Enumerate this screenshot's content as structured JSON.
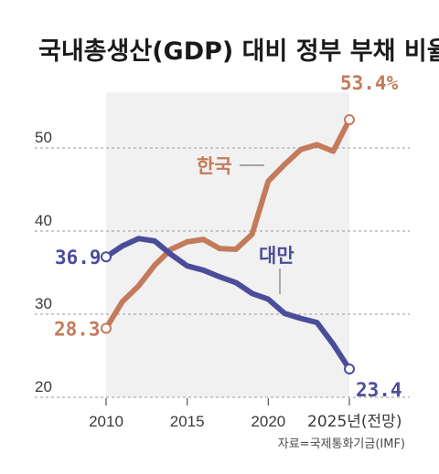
{
  "chart_data": {
    "type": "line",
    "title": "국내총생산(GDP) 대비 정부 부채 비율",
    "source": "자료=국제통화기금(IMF)",
    "x": [
      2010,
      2011,
      2012,
      2013,
      2014,
      2015,
      2016,
      2017,
      2018,
      2019,
      2020,
      2021,
      2022,
      2023,
      2024,
      2025
    ],
    "x_ticks": [
      {
        "value": 2010,
        "label": "2010"
      },
      {
        "value": 2015,
        "label": "2015"
      },
      {
        "value": 2020,
        "label": "2020"
      },
      {
        "value": 2025,
        "label": "2025년(전망)"
      }
    ],
    "y_ticks": [
      20,
      30,
      40,
      50
    ],
    "ylim": [
      20,
      56
    ],
    "grid": "horizontal-dashed",
    "shaded_region": [
      2010,
      2025
    ],
    "series": [
      {
        "name": "한국",
        "color": "#c47b5b",
        "values": [
          28.3,
          31.5,
          33.4,
          35.9,
          37.8,
          38.7,
          39.0,
          37.9,
          37.8,
          39.6,
          46.0,
          48.0,
          49.8,
          50.4,
          49.6,
          53.4
        ],
        "start_label": "28.3",
        "end_label": "53.4%"
      },
      {
        "name": "대만",
        "color": "#4b4d9b",
        "values": [
          36.9,
          38.2,
          39.1,
          38.8,
          37.2,
          35.8,
          35.3,
          34.5,
          33.8,
          32.5,
          31.8,
          30.1,
          29.5,
          29.0,
          26.4,
          23.4
        ],
        "start_label": "36.9",
        "end_label": "23.4"
      }
    ]
  }
}
